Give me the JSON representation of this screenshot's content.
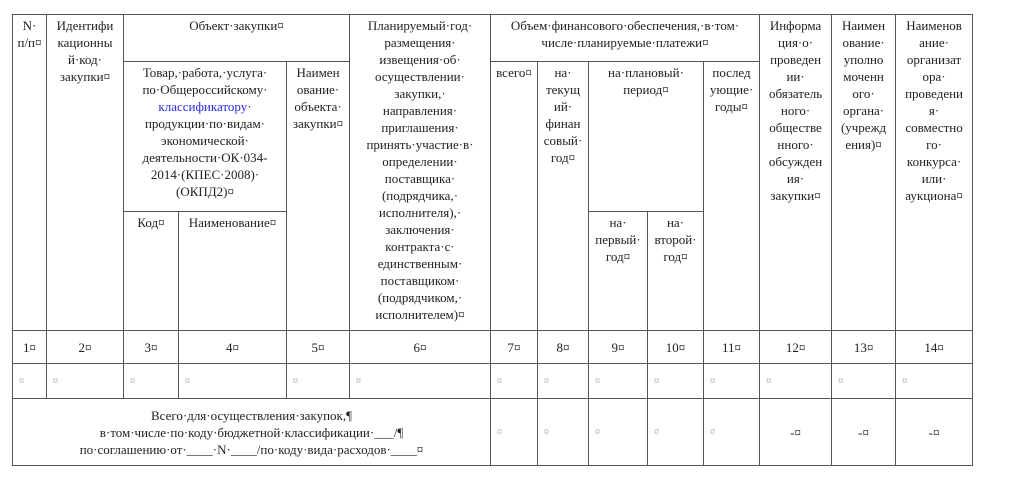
{
  "table": {
    "headers": {
      "num": "N·\nп/п¤",
      "id_code": "Идентифи\nкационны\nй·код·\nзакупки¤",
      "object": "Объект·закупки¤",
      "goods_a": "Товар,·работа,·услуга·\nпо·Общероссийскому·\n",
      "goods_link": "классификатору",
      "goods_b": "·\nпродукции·по·видам·\nэкономической·\nдеятельности·ОК·034-\n2014·(КПЕС·2008)·\n(ОКПД2)¤",
      "code": "Код¤",
      "name": "Наименование¤",
      "object_name": "Наимен\nование·\nобъекта·\nзакупки¤",
      "planned_year": "Планируемый·год·\nразмещения·\nизвещения·об·\nосуществлении·\nзакупки,·\nнаправления·\nприглашения·\nпринять·участие·в·\nопределении·\nпоставщика·\n(подрядчика,·\nисполнителя),·\nзаключения·\nконтракта·с·\nединственным·\nпоставщиком·\n(подрядчиком,·\nисполнителем)¤",
      "finance": "Объем·финансового·обеспечения,·в·том·\nчисле·планируемые·платежи¤",
      "total": "всего¤",
      "current_year": "на·\nтекущ\nий·\nфинан\nсовый·\nгод¤",
      "plan_period": "на·плановый·\nпериод¤",
      "first_year": "на·\nпервый·\nгод¤",
      "second_year": "на·\nвторой·\nгод¤",
      "next_years": "послед\nующие·\nгоды¤",
      "public_discussion": "Информа\nция·о·\nпроведен\nии·\nобязатель\nного·\nобществе\nнного·\nобсужден\nия·\nзакупки¤",
      "authorized_body": "Наимен\nование·\nуполно\nмоченн\nого·\nоргана·\n(учрежд\nения)¤",
      "organizer": "Наименов\nание·\nорганизат\nора·\nпроведени\nя·\nсовместно\nго·\nконкурса·\nили·\nаукциона¤"
    },
    "column_numbers": [
      "1¤",
      "2¤",
      "3¤",
      "4¤",
      "5¤",
      "6¤",
      "7¤",
      "8¤",
      "9¤",
      "10¤",
      "11¤",
      "12¤",
      "13¤",
      "14¤"
    ],
    "empty_row": [
      "¤",
      "¤",
      "¤",
      "¤",
      "¤",
      "¤",
      "¤",
      "¤",
      "¤",
      "¤",
      "¤",
      "¤",
      "¤",
      "¤"
    ],
    "total_row": {
      "label": "Всего·для·осуществления·закупок,¶\nв·том·числе·по·коду·бюджетной·классификации·___/¶\nпо·соглашению·от·____·N·____/по·коду·вида·расходов·____¤",
      "cells": [
        "¤",
        "¤",
        "¤",
        "¤",
        "¤",
        "-¤",
        "-¤",
        "-¤"
      ]
    }
  }
}
